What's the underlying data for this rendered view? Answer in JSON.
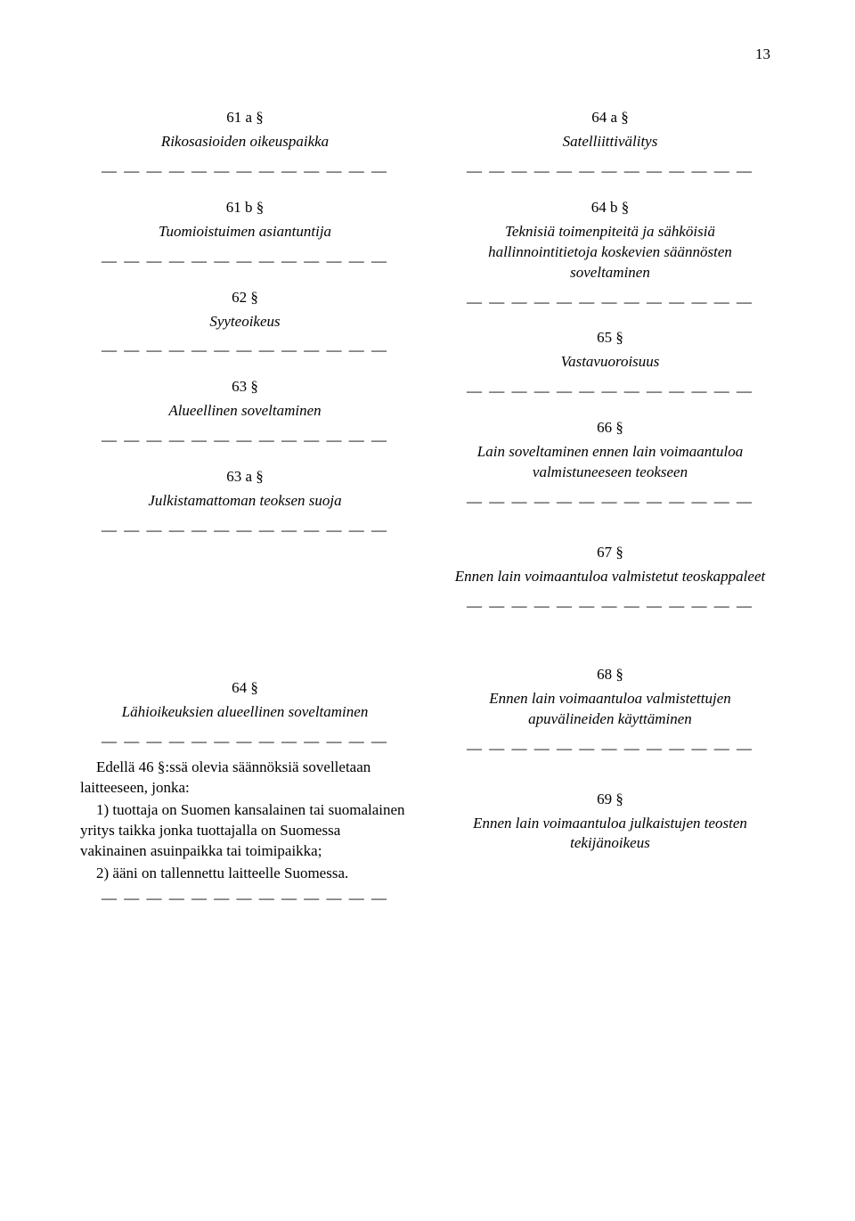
{
  "page_number": "13",
  "dash_row": "— — — — — — — — — — — — —",
  "left": {
    "s61a_num": "61 a §",
    "s61a_title": "Rikosasioiden oikeuspaikka",
    "s61b_num": "61 b §",
    "s61b_title": "Tuomioistuimen asiantuntija",
    "s62_num": "62 §",
    "s62_title": "Syyteoikeus",
    "s63_num": "63 §",
    "s63_title": "Alueellinen soveltaminen",
    "s63a_num": "63 a §",
    "s63a_title": "Julkistamattoman teoksen suoja",
    "s64_num": "64 §",
    "s64_title": "Lähioikeuksien alueellinen soveltaminen",
    "para1": "Edellä 46 §:ssä olevia säännöksiä sovelletaan laitteeseen, jonka:",
    "para2": "1) tuottaja on Suomen kansalainen tai suomalainen yritys taikka jonka tuottajalla on Suomessa vakinainen asuinpaikka tai toimipaikka;",
    "para3": "2) ääni on tallennettu laitteelle Suomessa."
  },
  "right": {
    "s64a_num": "64 a §",
    "s64a_title": "Satelliittivälitys",
    "s64b_num": "64 b §",
    "s64b_title": "Teknisiä toimenpiteitä ja sähköisiä hallinnointitietoja koskevien säännösten soveltaminen",
    "s65_num": "65 §",
    "s65_title": "Vastavuoroisuus",
    "s66_num": "66 §",
    "s66_title": "Lain soveltaminen ennen lain voimaantuloa valmistuneeseen teokseen",
    "s67_num": "67 §",
    "s67_title": "Ennen lain voimaantuloa valmistetut teoskappaleet",
    "s68_num": "68 §",
    "s68_title": "Ennen lain voimaantuloa valmistettujen apuvälineiden käyttäminen",
    "s69_num": "69 §",
    "s69_title": "Ennen lain voimaantuloa julkaistujen teosten tekijänoikeus"
  }
}
